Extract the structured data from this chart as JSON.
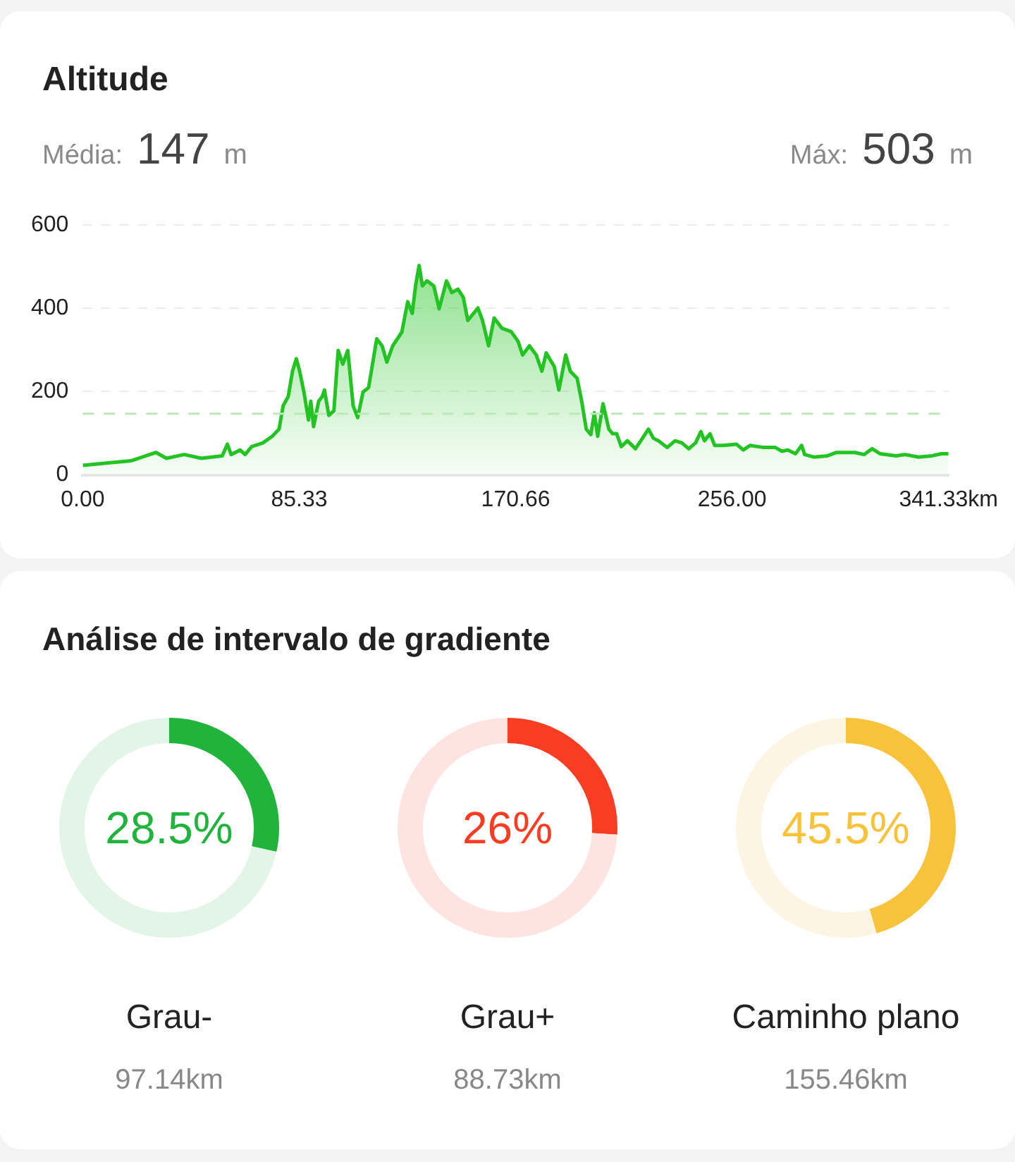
{
  "chart_data": [
    {
      "type": "area",
      "title": "Altitude",
      "annotations": [
        "Média:",
        "147",
        "m",
        "Máx:",
        "503",
        "m"
      ],
      "x": [
        0,
        10,
        19,
        28.9,
        33,
        40,
        46.8,
        55,
        57,
        58.5,
        62,
        64,
        66.6,
        71,
        74.7,
        77.4,
        79,
        81,
        82.7,
        84.2,
        85.4,
        87.2,
        89,
        89.9,
        91,
        93,
        94.4,
        95.3,
        97,
        99,
        100.7,
        102.5,
        104.5,
        106.6,
        108.4,
        110.5,
        112.7,
        115.9,
        118,
        119.9,
        122.2,
        125.8,
        128.1,
        129.9,
        131.2,
        132.6,
        133.9,
        135.7,
        138.4,
        140.5,
        143.4,
        145.5,
        147.9,
        150,
        151.8,
        155.8,
        157.6,
        160,
        162.2,
        165.3,
        168.9,
        171.6,
        173.4,
        176.1,
        178.8,
        181,
        182.7,
        185.9,
        187.7,
        190.4,
        192.2,
        194.9,
        196.7,
        198.5,
        200.3,
        201.7,
        203,
        205.1,
        207.4,
        208.9,
        210.5,
        212.3,
        214.7,
        217.9,
        220,
        223,
        225,
        227,
        230.4,
        233.5,
        236.2,
        238.9,
        241.6,
        243.7,
        245.1,
        247.3,
        249.1,
        252.3,
        257.7,
        260.4,
        263.1,
        268.5,
        273,
        275.7,
        278,
        281,
        283.4,
        284.6,
        288.2,
        293.6,
        297.2,
        304.4,
        308,
        311.2,
        314.3,
        320.5,
        324.1,
        329.5,
        334.9,
        338.5,
        341.3
      ],
      "values": [
        23,
        29,
        34,
        54,
        40,
        49,
        40,
        46,
        74,
        49,
        60,
        49,
        68,
        77,
        93,
        110,
        166,
        188,
        249,
        279,
        252,
        199,
        132,
        177,
        116,
        177,
        188,
        204,
        143,
        154,
        299,
        266,
        299,
        166,
        138,
        199,
        210,
        327,
        310,
        271,
        310,
        343,
        416,
        388,
        454,
        503,
        454,
        466,
        454,
        399,
        466,
        438,
        446,
        427,
        371,
        401,
        371,
        310,
        377,
        352,
        344,
        321,
        288,
        310,
        288,
        249,
        293,
        260,
        204,
        288,
        249,
        232,
        177,
        110,
        97,
        149,
        93,
        171,
        110,
        99,
        99,
        68,
        82,
        63,
        82,
        110,
        88,
        82,
        66,
        82,
        77,
        63,
        77,
        104,
        82,
        99,
        71,
        71,
        74,
        60,
        71,
        66,
        66,
        57,
        60,
        51,
        71,
        49,
        43,
        46,
        54,
        54,
        49,
        63,
        51,
        46,
        49,
        43,
        46,
        51,
        51
      ],
      "color": "#22c322",
      "xlim": [
        0,
        341.33
      ],
      "xticks": [
        {
          "value": 0,
          "label": "0.00"
        },
        {
          "value": 85.33,
          "label": "85.33"
        },
        {
          "value": 170.66,
          "label": "170.66"
        },
        {
          "value": 256,
          "label": "256.00"
        },
        {
          "value": 341.33,
          "label": "341.33km"
        }
      ],
      "ylim": [
        0,
        600
      ],
      "yticks": [
        0,
        200,
        400,
        600
      ],
      "grid": "y",
      "legend": false,
      "marker": "none",
      "ref_lines": [
        {
          "axis": "y",
          "value": 147,
          "color": "#bde9b8",
          "line_style": "dashed"
        }
      ]
    },
    {
      "type": "other",
      "title": "Análise de intervalo de gradiente"
    },
    {
      "type": "donut",
      "title": "Grau-",
      "subtitle": "97.14km",
      "categories": [
        null,
        null
      ],
      "values": [
        28.5,
        71.5
      ],
      "colors": [
        "#20b43c",
        "#e3f5e6"
      ],
      "value_labels": [
        "28.5%",
        null
      ],
      "legend": false
    },
    {
      "type": "donut",
      "title": "Grau+",
      "subtitle": "88.73km",
      "categories": [
        null,
        null
      ],
      "values": [
        26,
        74
      ],
      "colors": [
        "#f83d22",
        "#fde4e0"
      ],
      "value_labels": [
        "26%",
        null
      ],
      "legend": false
    },
    {
      "type": "donut",
      "title": "Caminho plano",
      "subtitle": "155.46km",
      "categories": [
        null,
        null
      ],
      "values": [
        45.5,
        54.5
      ],
      "colors": [
        "#f8c33a",
        "#fdf5e3"
      ],
      "value_labels": [
        "45.5%",
        null
      ],
      "legend": false
    }
  ]
}
